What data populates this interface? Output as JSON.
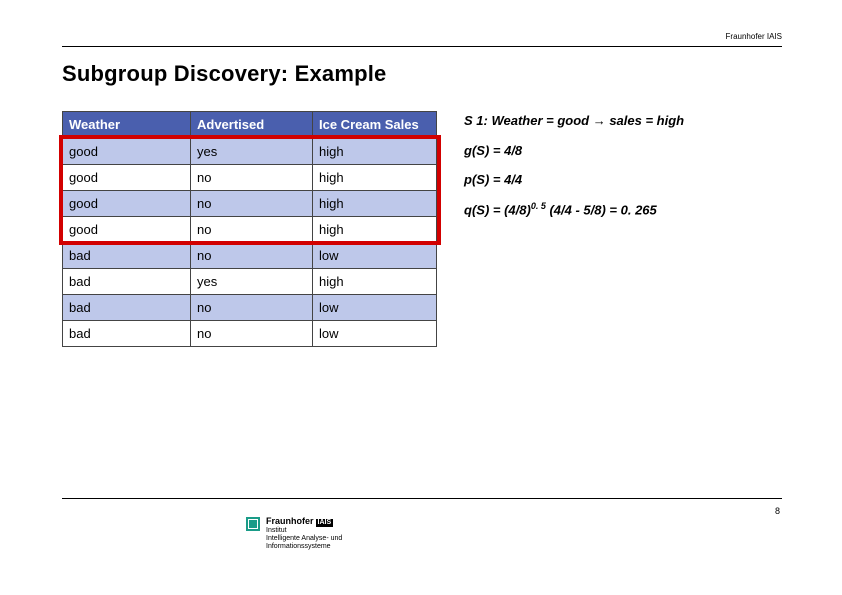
{
  "header": {
    "brand_top": "Fraunhofer IAIS",
    "title": "Subgroup Discovery: Example"
  },
  "table": {
    "columns": [
      {
        "label": "Weather",
        "class": "col-weather"
      },
      {
        "label": "Advertised",
        "class": "col-adv"
      },
      {
        "label": "Ice Cream Sales",
        "class": "col-sales"
      }
    ],
    "rows": [
      [
        "good",
        "yes",
        "high"
      ],
      [
        "good",
        "no",
        "high"
      ],
      [
        "good",
        "no",
        "high"
      ],
      [
        "good",
        "no",
        "high"
      ],
      [
        "bad",
        "no",
        "low"
      ],
      [
        "bad",
        "yes",
        "high"
      ],
      [
        "bad",
        "no",
        "low"
      ],
      [
        "bad",
        "no",
        "low"
      ]
    ],
    "header_bg": "#4a5fae",
    "header_fg": "#ffffff",
    "stripe_bg": "#bec8ea",
    "border_color": "#444444",
    "highlight": {
      "color": "#d20000",
      "first_row": 0,
      "last_row": 3
    }
  },
  "formulas": {
    "s1_label": "S 1: Weather = good ",
    "s1_arrow": "→",
    "s1_rhs": " sales = high",
    "g": "g(S) = 4/8",
    "p": "p(S) = 4/4",
    "q_pre": "q(S) = (4/8)",
    "q_sup": "0. 5",
    "q_post": " (4/4 - 5/8) = 0. 265"
  },
  "footer": {
    "page_num": "8",
    "logo": {
      "name": "Fraunhofer",
      "tag": "IAIS",
      "line1": "Institut",
      "line2": "Intelligente Analyse- und",
      "line3": "Informationssysteme"
    }
  }
}
